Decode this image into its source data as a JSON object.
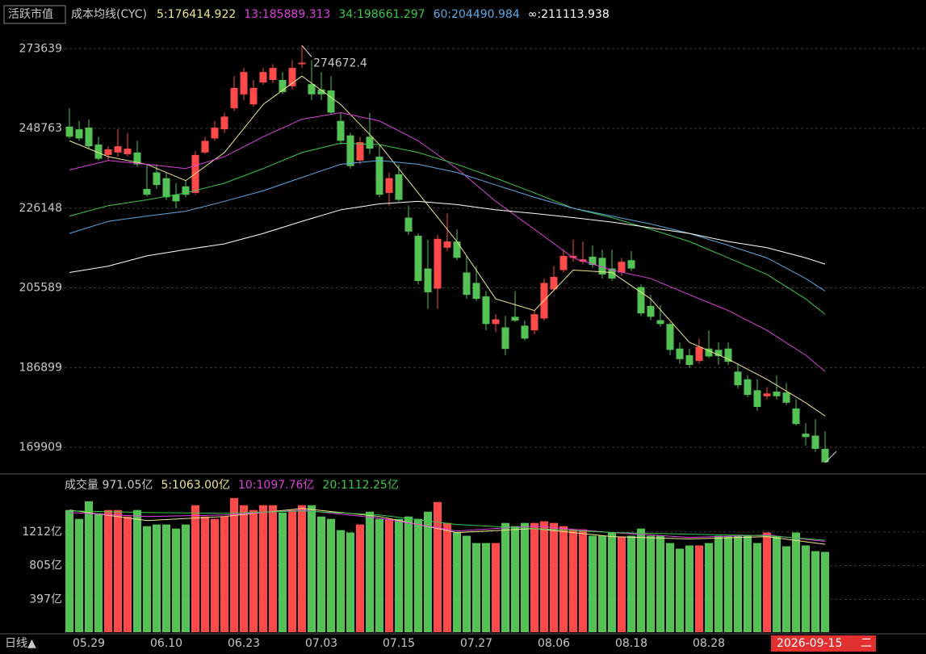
{
  "chart_data": [
    {
      "type": "candlestick",
      "title": "活跃市值",
      "subtitle": "成本均线(CYC)",
      "log_scale": true,
      "grid": true,
      "up_color": "#ff4a4a",
      "down_color": "#54c254",
      "categories": [
        null,
        null,
        "05.29",
        null,
        null,
        null,
        null,
        null,
        null,
        null,
        "06.10",
        null,
        null,
        null,
        null,
        null,
        null,
        null,
        "06.23",
        null,
        null,
        null,
        null,
        null,
        null,
        null,
        "07.03",
        null,
        null,
        null,
        null,
        null,
        null,
        null,
        "07.15",
        null,
        null,
        null,
        null,
        null,
        null,
        null,
        "07.27",
        null,
        null,
        null,
        null,
        null,
        null,
        null,
        "08.06",
        null,
        null,
        null,
        null,
        null,
        null,
        null,
        "08.18",
        null,
        null,
        null,
        null,
        null,
        null,
        null,
        "08.28",
        null,
        null,
        null,
        null,
        null,
        null,
        null,
        null,
        null,
        null,
        null,
        null
      ],
      "open": [
        249300,
        248500,
        249000,
        244000,
        241000,
        241700,
        241200,
        241700,
        231400,
        236000,
        234400,
        229800,
        232100,
        230300,
        241700,
        245800,
        248500,
        254800,
        259100,
        256000,
        262800,
        263600,
        263600,
        261600,
        268600,
        262300,
        260600,
        260300,
        251000,
        246700,
        239400,
        246300,
        240500,
        230300,
        235500,
        223600,
        218800,
        210400,
        205400,
        215700,
        217300,
        209400,
        206800,
        203500,
        196900,
        196100,
        198600,
        196500,
        195400,
        198200,
        205200,
        210000,
        213100,
        212100,
        213400,
        213100,
        210400,
        209400,
        212500,
        205800,
        201200,
        197800,
        196900,
        191200,
        189700,
        188400,
        191200,
        190900,
        191200,
        186000,
        184300,
        181900,
        180600,
        181600,
        181400,
        178000,
        172700,
        172300,
        169600
      ],
      "high": [
        254800,
        251000,
        251500,
        246300,
        243500,
        248500,
        247400,
        245100,
        238300,
        238300,
        236000,
        233000,
        233700,
        242100,
        246300,
        251000,
        253500,
        264800,
        267400,
        263600,
        267400,
        268600,
        266100,
        269900,
        274672.4,
        269900,
        266100,
        264800,
        253500,
        247400,
        246300,
        253500,
        244000,
        236000,
        238300,
        226800,
        219400,
        217800,
        219000,
        224700,
        220500,
        213600,
        211000,
        204800,
        199200,
        198800,
        204800,
        197700,
        200100,
        207900,
        211000,
        215200,
        217800,
        217300,
        216300,
        215200,
        215200,
        213100,
        214800,
        206400,
        203900,
        201400,
        197300,
        192600,
        191200,
        193500,
        195400,
        192600,
        192600,
        187800,
        185200,
        184300,
        182600,
        185200,
        183500,
        180000,
        174900,
        175700,
        173200
      ],
      "low": [
        245800,
        245100,
        242800,
        239400,
        239400,
        240500,
        240500,
        237600,
        229300,
        231400,
        228400,
        226100,
        229100,
        229800,
        241200,
        245100,
        247400,
        254000,
        257300,
        255300,
        262100,
        262600,
        259100,
        260600,
        267400,
        257300,
        257300,
        253000,
        244000,
        237100,
        238300,
        241200,
        229100,
        226800,
        228000,
        219000,
        206400,
        200500,
        200500,
        214800,
        212500,
        202900,
        202400,
        195400,
        195000,
        189700,
        197300,
        193100,
        194500,
        197700,
        204800,
        209400,
        212100,
        211500,
        210600,
        207900,
        207300,
        208500,
        209800,
        198800,
        197800,
        196300,
        189700,
        187800,
        186900,
        187800,
        189000,
        187500,
        187500,
        182300,
        180400,
        177500,
        179900,
        179900,
        178700,
        174400,
        170300,
        169000,
        166800
      ],
      "close": [
        246300,
        245800,
        243500,
        239900,
        242600,
        243500,
        242800,
        238300,
        229800,
        232500,
        229100,
        228000,
        229800,
        241000,
        245100,
        249000,
        252300,
        261100,
        266100,
        261100,
        266100,
        267400,
        259800,
        267400,
        269100,
        259100,
        259100,
        253500,
        245100,
        237800,
        244700,
        242800,
        229800,
        234400,
        228400,
        219900,
        207300,
        204500,
        218000,
        217300,
        213100,
        203900,
        202900,
        196900,
        198000,
        191100,
        197700,
        193500,
        199200,
        206800,
        208300,
        213600,
        213600,
        212700,
        211300,
        208900,
        207900,
        212100,
        210400,
        199400,
        198600,
        196900,
        190900,
        188800,
        187500,
        191600,
        189400,
        189500,
        188200,
        183000,
        180900,
        178300,
        181200,
        180600,
        179200,
        174700,
        172000,
        169600,
        166900
      ],
      "series": [
        {
          "name": "5:176414.922",
          "color": "#f0e68c",
          "x": [
            0,
            4,
            8,
            12,
            16,
            20,
            24,
            28,
            32,
            36,
            40,
            44,
            48,
            52,
            56,
            60,
            64,
            68,
            72,
            76,
            78
          ],
          "values": [
            245100,
            240500,
            238300,
            233700,
            241700,
            256000,
            264800,
            256000,
            244000,
            230300,
            217300,
            202900,
            200100,
            210000,
            209400,
            202900,
            192600,
            188800,
            184300,
            179200,
            176400
          ]
        },
        {
          "name": "13:185889.313",
          "color": "#e040e0",
          "x": [
            0,
            4,
            8,
            12,
            16,
            20,
            24,
            28,
            32,
            36,
            40,
            44,
            48,
            52,
            56,
            60,
            64,
            68,
            72,
            76,
            78
          ],
          "values": [
            236700,
            239400,
            238300,
            237100,
            240500,
            246300,
            251500,
            253500,
            251000,
            245100,
            237100,
            228000,
            220500,
            213100,
            210000,
            207900,
            203900,
            200100,
            195400,
            189700,
            186000
          ]
        },
        {
          "name": "34:198661.297",
          "color": "#3cc84a",
          "x": [
            0,
            4,
            8,
            12,
            16,
            20,
            24,
            28,
            32,
            36,
            40,
            44,
            48,
            52,
            56,
            60,
            64,
            68,
            72,
            76,
            78
          ],
          "values": [
            224000,
            226800,
            228400,
            230300,
            233000,
            237100,
            241700,
            244400,
            244000,
            241700,
            238300,
            234400,
            230300,
            226100,
            223600,
            220500,
            217300,
            213100,
            208900,
            202900,
            199200
          ]
        },
        {
          "name": "60:204490.984",
          "color": "#5aa8e6",
          "x": [
            0,
            4,
            8,
            12,
            16,
            20,
            24,
            28,
            32,
            36,
            40,
            44,
            48,
            52,
            56,
            60,
            64,
            68,
            72,
            76,
            78
          ],
          "values": [
            219400,
            222600,
            224000,
            225300,
            228000,
            230900,
            234600,
            238300,
            239400,
            238300,
            236000,
            232500,
            229100,
            226100,
            224000,
            221900,
            219400,
            216300,
            213100,
            207900,
            204800
          ]
        },
        {
          "name": "∞:211113.938",
          "color": "#ffffff",
          "x": [
            0,
            4,
            8,
            12,
            16,
            20,
            24,
            28,
            32,
            36,
            40,
            44,
            48,
            52,
            56,
            60,
            64,
            68,
            72,
            76,
            78
          ],
          "values": [
            209400,
            211000,
            213600,
            215200,
            216700,
            219400,
            222600,
            225700,
            227300,
            228000,
            227100,
            225700,
            224700,
            223600,
            222400,
            220900,
            219400,
            217300,
            215700,
            213100,
            211500
          ]
        }
      ],
      "ylim": [
        164900,
        282300
      ],
      "yticks": [
        273639,
        248763,
        226148,
        205589,
        186899,
        169909
      ]
    },
    {
      "type": "bar",
      "title": "成交量 971.05亿",
      "values": [
        1477,
        1370,
        1583,
        1438,
        1477,
        1477,
        1399,
        1477,
        1282,
        1302,
        1302,
        1253,
        1302,
        1535,
        1399,
        1370,
        1399,
        1622,
        1535,
        1477,
        1535,
        1535,
        1447,
        1477,
        1535,
        1535,
        1399,
        1370,
        1234,
        1205,
        1302,
        1457,
        1370,
        1370,
        1370,
        1399,
        1370,
        1457,
        1574,
        1321,
        1205,
        1166,
        1078,
        1078,
        1078,
        1321,
        1282,
        1321,
        1321,
        1341,
        1321,
        1282,
        1243,
        1243,
        1166,
        1166,
        1205,
        1156,
        1166,
        1253,
        1166,
        1166,
        1078,
        1010,
        1049,
        1049,
        1078,
        1166,
        1156,
        1166,
        1166,
        1078,
        1205,
        1156,
        1039,
        1205,
        1049,
        980,
        971.05
      ],
      "series": [
        {
          "name": "5:1063.00亿",
          "color": "#f0e68c",
          "x": [
            0,
            8,
            16,
            24,
            32,
            40,
            48,
            56,
            64,
            72,
            78
          ],
          "values": [
            1477,
            1350,
            1399,
            1496,
            1399,
            1205,
            1253,
            1156,
            1127,
            1156,
            1063
          ]
        },
        {
          "name": "10:1097.76亿",
          "color": "#e040e0",
          "x": [
            0,
            8,
            16,
            24,
            32,
            40,
            48,
            56,
            64,
            72,
            78
          ],
          "values": [
            1447,
            1399,
            1418,
            1477,
            1379,
            1224,
            1282,
            1205,
            1146,
            1175,
            1097.76
          ]
        },
        {
          "name": "20:1112.25亿",
          "color": "#3cc84a",
          "x": [
            0,
            8,
            16,
            24,
            32,
            40,
            48,
            56,
            64,
            72,
            78
          ],
          "values": [
            1467,
            1447,
            1438,
            1467,
            1418,
            1302,
            1253,
            1205,
            1185,
            1166,
            1112.25
          ]
        }
      ],
      "ylim": [
        0,
        1640
      ],
      "yticks": [
        {
          "value": 1212,
          "label": "1212亿"
        },
        {
          "value": 805,
          "label": "805亿"
        },
        {
          "value": 397,
          "label": "397亿"
        }
      ]
    }
  ],
  "ui": {
    "period": "日线▲",
    "cursor_date": "2026-09-15",
    "cursor_weekday": "二"
  }
}
